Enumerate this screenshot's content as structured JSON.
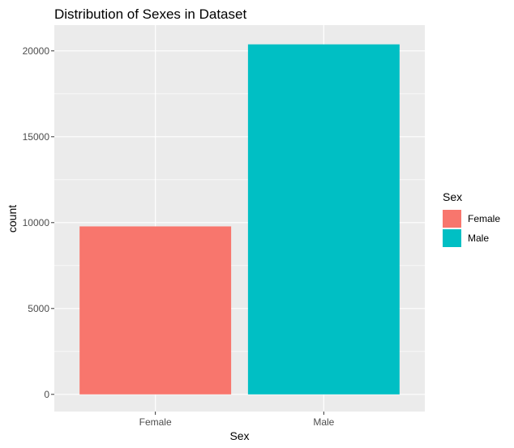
{
  "chart_data": {
    "type": "bar",
    "title": "Distribution of Sexes in Dataset",
    "xlabel": "Sex",
    "ylabel": "count",
    "categories": [
      "Female",
      "Male"
    ],
    "values": [
      9780,
      20380
    ],
    "colors": [
      "#F8766D",
      "#00BFC4"
    ],
    "ylim": [
      -1000,
      21500
    ],
    "yticks": [
      0,
      5000,
      10000,
      15000,
      20000
    ],
    "ytick_labels": [
      "0",
      "5000",
      "10000",
      "15000",
      "20000"
    ],
    "grid": true,
    "panel_background": "#EBEBEB",
    "grid_color": "#FFFFFF",
    "legend": {
      "title": "Sex",
      "placement": "right",
      "entries": [
        {
          "label": "Female",
          "color": "#F8766D"
        },
        {
          "label": "Male",
          "color": "#00BFC4"
        }
      ]
    }
  }
}
